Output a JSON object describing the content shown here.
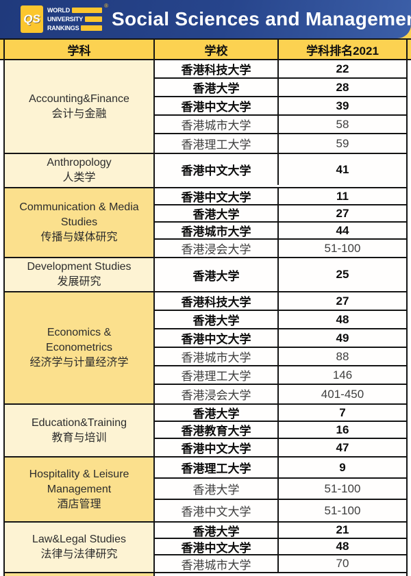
{
  "header": {
    "logo": {
      "monogram": "QS",
      "lines": [
        "WORLD",
        "UNIVERSITY",
        "RANKINGS"
      ],
      "trademark": "®"
    },
    "title": "Social Sciences and Management"
  },
  "table": {
    "columns": [
      "学科",
      "学校",
      "学科排名2021"
    ],
    "groups": [
      {
        "subject_en": "Accounting&Finance",
        "subject_zh": "会计与金融",
        "shade": "light",
        "rows": [
          {
            "school": "香港科技大学",
            "rank": "22",
            "emphasis": true
          },
          {
            "school": "香港大学",
            "rank": "28",
            "emphasis": true
          },
          {
            "school": "香港中文大学",
            "rank": "39",
            "emphasis": true
          },
          {
            "school": "香港城市大学",
            "rank": "58",
            "emphasis": false
          },
          {
            "school": "香港理工大学",
            "rank": "59",
            "emphasis": false
          }
        ]
      },
      {
        "subject_en": "Anthropology",
        "subject_zh": "人类学",
        "shade": "light",
        "rows": [
          {
            "school": "香港中文大学",
            "rank": "41",
            "emphasis": true
          }
        ]
      },
      {
        "subject_en": "Communication & Media Studies",
        "subject_zh": "传播与媒体研究",
        "shade": "gold",
        "rows": [
          {
            "school": "香港中文大学",
            "rank": "11",
            "emphasis": true
          },
          {
            "school": "香港大学",
            "rank": "27",
            "emphasis": true
          },
          {
            "school": "香港城市大学",
            "rank": "44",
            "emphasis": true
          },
          {
            "school": "香港浸会大学",
            "rank": "51-100",
            "emphasis": false
          }
        ]
      },
      {
        "subject_en": "Development Studies",
        "subject_zh": "发展研究",
        "shade": "light",
        "rows": [
          {
            "school": "香港大学",
            "rank": "25",
            "emphasis": true
          }
        ]
      },
      {
        "subject_en": "Economics & Econometrics",
        "subject_zh": "经济学与计量经济学",
        "shade": "gold",
        "rows": [
          {
            "school": "香港科技大学",
            "rank": "27",
            "emphasis": true
          },
          {
            "school": "香港大学",
            "rank": "48",
            "emphasis": true
          },
          {
            "school": "香港中文大学",
            "rank": "49",
            "emphasis": true
          },
          {
            "school": "香港城市大学",
            "rank": "88",
            "emphasis": false
          },
          {
            "school": "香港理工大学",
            "rank": "146",
            "emphasis": false
          },
          {
            "school": "香港浸会大学",
            "rank": "401-450",
            "emphasis": false
          }
        ]
      },
      {
        "subject_en": "Education&Training",
        "subject_zh": "教育与培训",
        "shade": "light",
        "rows": [
          {
            "school": "香港大学",
            "rank": "7",
            "emphasis": true
          },
          {
            "school": "香港教育大学",
            "rank": "16",
            "emphasis": true
          },
          {
            "school": "香港中文大学",
            "rank": "47",
            "emphasis": true
          }
        ]
      },
      {
        "subject_en": "Hospitality & Leisure Management",
        "subject_zh": "酒店管理",
        "shade": "gold",
        "rows": [
          {
            "school": "香港理工大学",
            "rank": "9",
            "emphasis": true
          },
          {
            "school": "香港大学",
            "rank": "51-100",
            "emphasis": false
          },
          {
            "school": "香港中文大学",
            "rank": "51-100",
            "emphasis": false
          }
        ]
      },
      {
        "subject_en": "Law&Legal Studies",
        "subject_zh": "法律与法律研究",
        "shade": "light",
        "rows": [
          {
            "school": "香港大学",
            "rank": "21",
            "emphasis": true
          },
          {
            "school": "香港中文大学",
            "rank": "48",
            "emphasis": true
          },
          {
            "school": "香港城市大学",
            "rank": "70",
            "emphasis": false
          }
        ]
      }
    ]
  },
  "colors": {
    "masthead_blue_dark": "#203a7c",
    "masthead_blue_light": "#3c5fa8",
    "logo_gold": "#fcc62e",
    "header_gold": "#fcd251",
    "subject_light": "#fdf3d3",
    "subject_gold": "#fbe08d",
    "border": "#141414"
  }
}
